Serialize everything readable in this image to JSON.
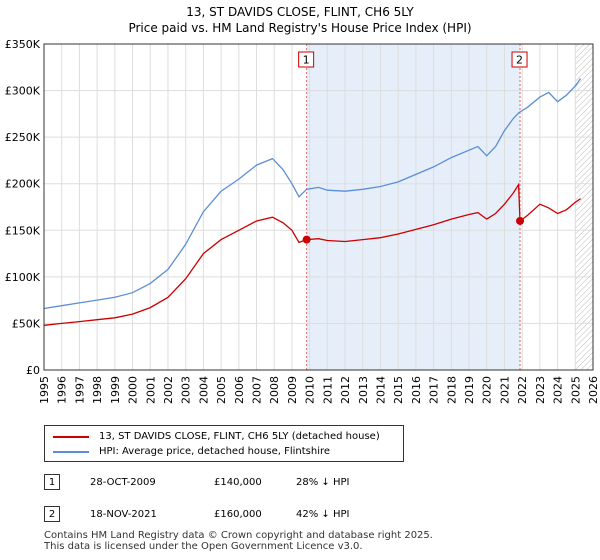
{
  "chart_data": {
    "type": "line",
    "title": "13, ST DAVIDS CLOSE, FLINT, CH6 5LY",
    "subtitle": "Price paid vs. HM Land Registry's House Price Index (HPI)",
    "y_ticks": [
      "£0",
      "£50K",
      "£100K",
      "£150K",
      "£200K",
      "£250K",
      "£300K",
      "£350K"
    ],
    "y_tick_values": [
      0,
      50000,
      100000,
      150000,
      200000,
      250000,
      300000,
      350000
    ],
    "ylim": [
      0,
      350000
    ],
    "xlim": [
      1995,
      2026
    ],
    "x_ticks": [
      "1995",
      "1996",
      "1997",
      "1998",
      "1999",
      "2000",
      "2001",
      "2002",
      "2003",
      "2004",
      "2005",
      "2006",
      "2007",
      "2008",
      "2009",
      "2010",
      "2011",
      "2012",
      "2013",
      "2014",
      "2015",
      "2016",
      "2017",
      "2018",
      "2019",
      "2020",
      "2021",
      "2022",
      "2023",
      "2024",
      "2025",
      "2026"
    ],
    "grid": true,
    "hatch_from": 2025.0,
    "colors": {
      "property": "#cc0000",
      "hpi": "#5b8fd4",
      "highlight": "#e6eefa",
      "marker_line": "#e06666",
      "marker": "#cc0000"
    },
    "series": [
      {
        "name": "13, ST DAVIDS CLOSE, FLINT, CH6 5LY (detached house)",
        "color": "#cc0000",
        "x": [
          1995.0,
          1996.0,
          1997.0,
          1998.0,
          1999.0,
          2000.0,
          2001.0,
          2002.0,
          2003.0,
          2004.0,
          2005.0,
          2006.0,
          2007.0,
          2007.9,
          2008.5,
          2009.0,
          2009.4,
          2009.83,
          2010.5,
          2011.0,
          2012.0,
          2013.0,
          2014.0,
          2015.0,
          2016.0,
          2017.0,
          2018.0,
          2019.0,
          2019.5,
          2020.0,
          2020.5,
          2021.0,
          2021.5,
          2021.8,
          2021.88,
          2022.3,
          2023.0,
          2023.5,
          2024.0,
          2024.5,
          2025.0,
          2025.3
        ],
        "y": [
          48000,
          50000,
          52000,
          54000,
          56000,
          60000,
          67000,
          78000,
          98000,
          125000,
          140000,
          150000,
          160000,
          164000,
          158000,
          150000,
          137000,
          140000,
          141000,
          139000,
          138000,
          140000,
          142000,
          146000,
          151000,
          156000,
          162000,
          167000,
          169000,
          162000,
          168000,
          178000,
          190000,
          199000,
          160000,
          166000,
          178000,
          174000,
          168000,
          172000,
          180000,
          184000
        ]
      },
      {
        "name": "HPI: Average price, detached house, Flintshire",
        "color": "#5b8fd4",
        "x": [
          1995.0,
          1996.0,
          1997.0,
          1998.0,
          1999.0,
          2000.0,
          2001.0,
          2002.0,
          2003.0,
          2004.0,
          2005.0,
          2006.0,
          2007.0,
          2007.9,
          2008.5,
          2009.0,
          2009.4,
          2009.83,
          2010.5,
          2011.0,
          2012.0,
          2013.0,
          2014.0,
          2015.0,
          2016.0,
          2017.0,
          2018.0,
          2019.0,
          2019.5,
          2020.0,
          2020.5,
          2021.0,
          2021.5,
          2021.8,
          2021.88,
          2022.3,
          2023.0,
          2023.5,
          2024.0,
          2024.5,
          2025.0,
          2025.3
        ],
        "y": [
          66000,
          69000,
          72000,
          75000,
          78000,
          83000,
          93000,
          108000,
          135000,
          170000,
          192000,
          205000,
          220000,
          227000,
          215000,
          200000,
          186000,
          194000,
          196000,
          193000,
          192000,
          194000,
          197000,
          202000,
          210000,
          218000,
          228000,
          236000,
          240000,
          230000,
          240000,
          257000,
          270000,
          276000,
          277000,
          282000,
          293000,
          298000,
          288000,
          295000,
          305000,
          313000
        ]
      }
    ],
    "markers": [
      {
        "label": "1",
        "x": 2009.83,
        "y": 140000
      },
      {
        "label": "2",
        "x": 2021.88,
        "y": 160000
      }
    ]
  },
  "transactions": [
    {
      "num": "1",
      "date": "28-OCT-2009",
      "price": "£140,000",
      "hpi": "28% ↓ HPI"
    },
    {
      "num": "2",
      "date": "18-NOV-2021",
      "price": "£160,000",
      "hpi": "42% ↓ HPI"
    }
  ],
  "footer": {
    "line1": "Contains HM Land Registry data © Crown copyright and database right 2025.",
    "line2": "This data is licensed under the Open Government Licence v3.0."
  }
}
